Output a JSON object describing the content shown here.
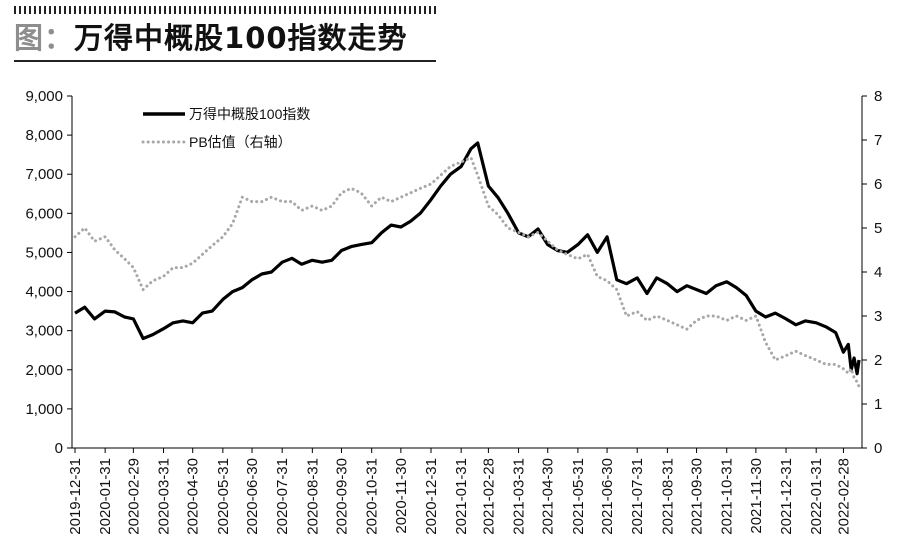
{
  "header": {
    "prefix": "图：",
    "title": "万得中概股100指数走势"
  },
  "chart_data": {
    "type": "line",
    "title": "万得中概股100指数走势",
    "legend_position": "top-left",
    "grid": false,
    "y_left": {
      "min": 0,
      "max": 9000,
      "ticks": [
        "0",
        "1,000",
        "2,000",
        "3,000",
        "4,000",
        "5,000",
        "6,000",
        "7,000",
        "8,000",
        "9,000"
      ]
    },
    "y_right": {
      "min": 0,
      "max": 8,
      "ticks": [
        "0",
        "1",
        "2",
        "3",
        "4",
        "5",
        "6",
        "7",
        "8"
      ]
    },
    "x_categories": [
      "2019-12-31",
      "2020-01-31",
      "2020-02-29",
      "2020-03-31",
      "2020-04-30",
      "2020-05-31",
      "2020-06-30",
      "2020-07-31",
      "2020-08-31",
      "2020-09-30",
      "2020-10-31",
      "2020-11-30",
      "2020-12-31",
      "2021-01-31",
      "2021-02-28",
      "2021-03-31",
      "2021-04-30",
      "2021-05-31",
      "2021-06-30",
      "2021-07-31",
      "2021-08-31",
      "2021-09-30",
      "2021-10-31",
      "2021-11-30",
      "2021-12-31",
      "2022-01-31",
      "2022-02-28"
    ],
    "series": [
      {
        "name": "万得中概股100指数",
        "axis": "left",
        "color": "#000000",
        "style": "solid",
        "x": [
          "2019-12-31",
          "2020-01-10",
          "2020-01-20",
          "2020-01-31",
          "2020-02-10",
          "2020-02-20",
          "2020-02-29",
          "2020-03-10",
          "2020-03-20",
          "2020-03-31",
          "2020-04-10",
          "2020-04-20",
          "2020-04-30",
          "2020-05-10",
          "2020-05-20",
          "2020-05-31",
          "2020-06-10",
          "2020-06-20",
          "2020-06-30",
          "2020-07-10",
          "2020-07-20",
          "2020-07-31",
          "2020-08-10",
          "2020-08-20",
          "2020-08-31",
          "2020-09-10",
          "2020-09-20",
          "2020-09-30",
          "2020-10-10",
          "2020-10-20",
          "2020-10-31",
          "2020-11-10",
          "2020-11-20",
          "2020-11-30",
          "2020-12-10",
          "2020-12-20",
          "2020-12-31",
          "2021-01-10",
          "2021-01-20",
          "2021-01-31",
          "2021-02-10",
          "2021-02-17",
          "2021-02-28",
          "2021-03-10",
          "2021-03-20",
          "2021-03-31",
          "2021-04-10",
          "2021-04-20",
          "2021-04-30",
          "2021-05-10",
          "2021-05-20",
          "2021-05-31",
          "2021-06-10",
          "2021-06-20",
          "2021-06-30",
          "2021-07-10",
          "2021-07-20",
          "2021-07-31",
          "2021-08-10",
          "2021-08-20",
          "2021-08-31",
          "2021-09-10",
          "2021-09-20",
          "2021-09-30",
          "2021-10-10",
          "2021-10-20",
          "2021-10-31",
          "2021-11-10",
          "2021-11-20",
          "2021-11-30",
          "2021-12-10",
          "2021-12-20",
          "2021-12-31",
          "2022-01-10",
          "2022-01-20",
          "2022-01-31",
          "2022-02-10",
          "2022-02-20",
          "2022-02-28",
          "2022-03-05",
          "2022-03-08",
          "2022-03-11",
          "2022-03-14",
          "2022-03-16"
        ],
        "y": [
          3450,
          3600,
          3300,
          3500,
          3480,
          3350,
          3300,
          2800,
          2900,
          3050,
          3200,
          3250,
          3200,
          3450,
          3500,
          3800,
          4000,
          4100,
          4300,
          4450,
          4500,
          4750,
          4850,
          4700,
          4800,
          4750,
          4800,
          5050,
          5150,
          5200,
          5250,
          5500,
          5700,
          5650,
          5800,
          6000,
          6350,
          6700,
          7000,
          7200,
          7650,
          7800,
          6700,
          6400,
          6000,
          5500,
          5400,
          5600,
          5200,
          5050,
          5000,
          5200,
          5450,
          5000,
          5400,
          4300,
          4200,
          4350,
          3950,
          4350,
          4200,
          4000,
          4150,
          4050,
          3950,
          4150,
          4250,
          4100,
          3900,
          3500,
          3350,
          3450,
          3300,
          3150,
          3250,
          3200,
          3100,
          2950,
          2450,
          2650,
          2000,
          2300,
          1900,
          2250
        ]
      },
      {
        "name": "PB估值（右轴）",
        "axis": "right",
        "color": "#a8a8a8",
        "style": "dotted",
        "x": [
          "2019-12-31",
          "2020-01-10",
          "2020-01-20",
          "2020-01-31",
          "2020-02-10",
          "2020-02-20",
          "2020-02-29",
          "2020-03-10",
          "2020-03-20",
          "2020-03-31",
          "2020-04-10",
          "2020-04-20",
          "2020-04-30",
          "2020-05-10",
          "2020-05-20",
          "2020-05-31",
          "2020-06-10",
          "2020-06-20",
          "2020-06-30",
          "2020-07-10",
          "2020-07-20",
          "2020-07-31",
          "2020-08-10",
          "2020-08-20",
          "2020-08-31",
          "2020-09-10",
          "2020-09-20",
          "2020-09-30",
          "2020-10-10",
          "2020-10-20",
          "2020-10-31",
          "2020-11-10",
          "2020-11-20",
          "2020-11-30",
          "2020-12-10",
          "2020-12-20",
          "2020-12-31",
          "2021-01-10",
          "2021-01-20",
          "2021-01-31",
          "2021-02-10",
          "2021-02-17",
          "2021-02-28",
          "2021-03-10",
          "2021-03-20",
          "2021-03-31",
          "2021-04-10",
          "2021-04-20",
          "2021-04-30",
          "2021-05-10",
          "2021-05-20",
          "2021-05-31",
          "2021-06-10",
          "2021-06-20",
          "2021-06-30",
          "2021-07-10",
          "2021-07-20",
          "2021-07-31",
          "2021-08-10",
          "2021-08-20",
          "2021-08-31",
          "2021-09-10",
          "2021-09-20",
          "2021-09-30",
          "2021-10-10",
          "2021-10-20",
          "2021-10-31",
          "2021-11-10",
          "2021-11-20",
          "2021-11-30",
          "2021-12-10",
          "2021-12-20",
          "2021-12-31",
          "2022-01-10",
          "2022-01-20",
          "2022-01-31",
          "2022-02-10",
          "2022-02-20",
          "2022-02-28",
          "2022-03-05",
          "2022-03-08",
          "2022-03-11",
          "2022-03-14",
          "2022-03-16"
        ],
        "y": [
          4.8,
          5.0,
          4.7,
          4.8,
          4.5,
          4.3,
          4.1,
          3.6,
          3.8,
          3.9,
          4.1,
          4.1,
          4.2,
          4.4,
          4.6,
          4.8,
          5.1,
          5.7,
          5.6,
          5.6,
          5.7,
          5.6,
          5.6,
          5.4,
          5.5,
          5.4,
          5.5,
          5.8,
          5.9,
          5.8,
          5.5,
          5.7,
          5.6,
          5.7,
          5.8,
          5.9,
          6.0,
          6.2,
          6.4,
          6.5,
          6.6,
          6.2,
          5.5,
          5.3,
          5.0,
          4.9,
          4.8,
          4.9,
          4.7,
          4.5,
          4.4,
          4.3,
          4.4,
          3.9,
          3.8,
          3.6,
          3.0,
          3.1,
          2.9,
          3.0,
          2.9,
          2.8,
          2.7,
          2.9,
          3.0,
          3.0,
          2.9,
          3.0,
          2.9,
          3.0,
          2.4,
          2.0,
          2.1,
          2.2,
          2.1,
          2.0,
          1.9,
          1.9,
          1.8,
          1.7,
          1.8,
          1.6,
          1.5,
          1.4
        ]
      }
    ]
  }
}
